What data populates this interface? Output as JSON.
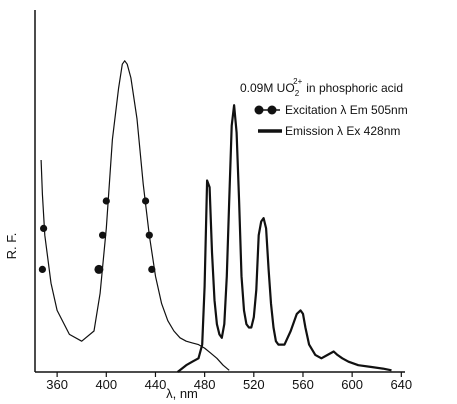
{
  "chart_data": {
    "type": "line",
    "title_parts": {
      "prefix": "0.09M UO",
      "subscript": "2",
      "superscript": "2+",
      "suffix": "in phosphoric acid"
    },
    "xlabel": "λ, nm",
    "ylabel": "R. F.",
    "xlim": [
      342,
      643
    ],
    "ylim": [
      0,
      100
    ],
    "xticks": [
      "360",
      "400",
      "440",
      "480",
      "520",
      "560",
      "600",
      "640"
    ],
    "xtick_values": [
      360,
      400,
      440,
      480,
      520,
      560,
      600,
      640
    ],
    "grid": false,
    "legend_position": "top-right",
    "series": [
      {
        "name": "Excitation λ Em 505nm",
        "style": "line with filled circle markers",
        "color": "#111111",
        "x": [
          347,
          348,
          350,
          355,
          360,
          370,
          380,
          390,
          395,
          400,
          405,
          410,
          413,
          415,
          417,
          420,
          425,
          430,
          435,
          440,
          445,
          450,
          455,
          460,
          465,
          470,
          475,
          480,
          485,
          490,
          495,
          500
        ],
        "y": [
          62,
          52,
          40,
          26,
          18,
          11,
          9,
          12,
          23,
          42,
          68,
          83,
          90,
          91,
          90,
          86,
          74,
          55,
          40,
          28,
          20,
          15,
          12,
          10,
          9,
          8.5,
          8,
          7,
          5.5,
          4,
          2,
          0.5
        ]
      },
      {
        "name": "Emission λ Ex 428nm",
        "style": "thick solid line",
        "color": "#111111",
        "x": [
          458,
          465,
          470,
          475,
          478,
          480,
          482,
          484,
          486,
          488,
          490,
          492,
          494,
          496,
          498,
          500,
          502,
          504,
          506,
          508,
          510,
          512,
          514,
          516,
          518,
          520,
          522,
          524,
          526,
          528,
          530,
          532,
          534,
          536,
          538,
          540,
          545,
          550,
          555,
          558,
          560,
          562,
          565,
          570,
          575,
          580,
          585,
          588,
          592,
          597,
          605,
          615,
          625,
          632
        ],
        "y": [
          0,
          2,
          3,
          4,
          8,
          25,
          56,
          54,
          35,
          21,
          14,
          11,
          10,
          14,
          28,
          50,
          72,
          78,
          70,
          50,
          28,
          18,
          14,
          13,
          13,
          16,
          24,
          40,
          44,
          45,
          42,
          30,
          20,
          13,
          9,
          8,
          8,
          12,
          17,
          18,
          17,
          13,
          8,
          5,
          4,
          5,
          6,
          5,
          4,
          3,
          2,
          1.5,
          1,
          0.5
        ]
      }
    ]
  }
}
